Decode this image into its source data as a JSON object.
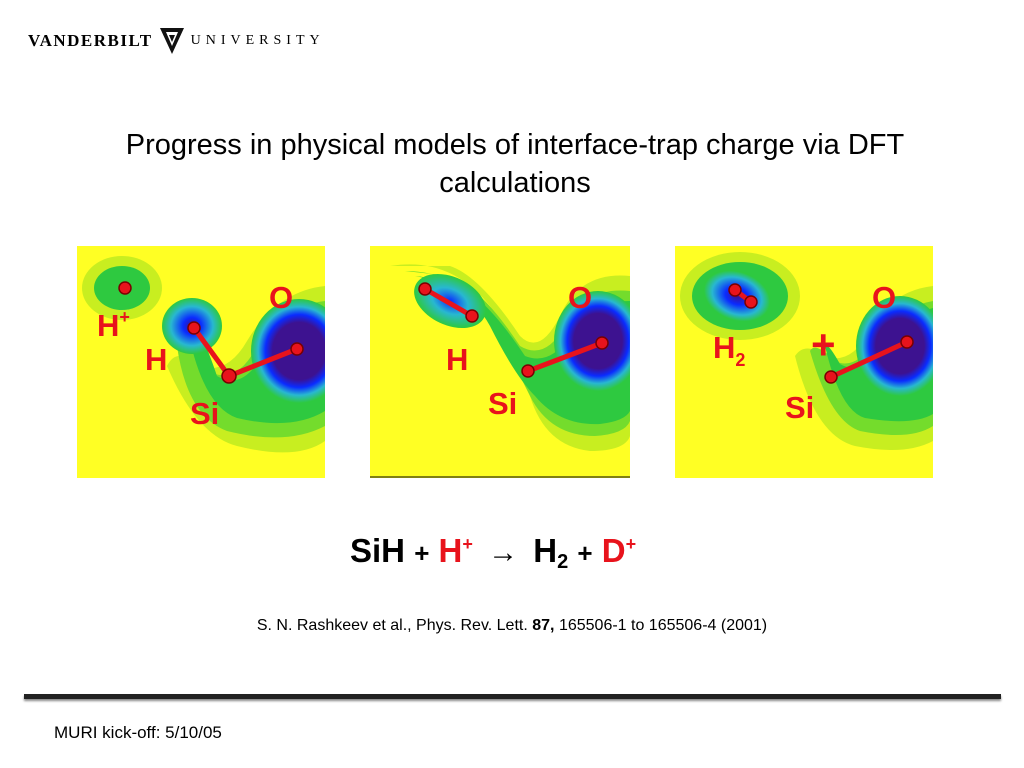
{
  "header": {
    "logo_left": "VANDERBILT",
    "logo_right": "UNIVERSITY",
    "logo_icon": "vanderbilt-v-shield-icon"
  },
  "slide": {
    "title": "Progress in physical models of interface-trap charge via DFT calculations"
  },
  "panels": [
    {
      "labels": {
        "hplus": "H",
        "hplus_sup": "+",
        "h": "H",
        "o": "O",
        "si": "Si"
      }
    },
    {
      "labels": {
        "o": "O",
        "h": "H",
        "si": "Si"
      }
    },
    {
      "labels": {
        "o": "O",
        "h2": "H",
        "h2_sub": "2",
        "plus": "+",
        "si": "Si"
      }
    }
  ],
  "equation": {
    "term1": "SiH",
    "plus1": "+",
    "term2": "H",
    "term2_sup": "+",
    "arrow": "→",
    "term3": "H",
    "term3_sub": "2",
    "plus2": "+",
    "term4": "D",
    "term4_sup": "+"
  },
  "reference": {
    "authors": "S. N. Rashkeev et al., Phys. Rev. Lett.",
    "volume": "87,",
    "pages": "165506-1 to 165506-4 (2001)"
  },
  "footer": {
    "text": "MURI kick-off: 5/10/05"
  },
  "colors": {
    "accent_red": "#e8131c",
    "map_yellow": "#ffff24",
    "map_green": "#2ec940",
    "map_blue": "#0a2bff",
    "map_indigo": "#3d1290"
  }
}
